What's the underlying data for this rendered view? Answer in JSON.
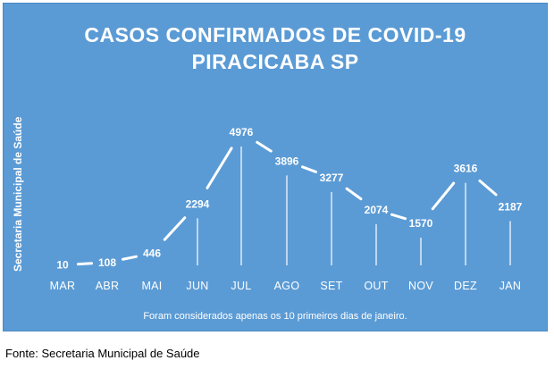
{
  "chart_data": {
    "type": "line",
    "title": "CASOS CONFIRMADOS DE COVID-19",
    "subtitle": "PIRACICABA SP",
    "ylabel": "Secretaria Municipal de Saúde",
    "xlabel": "",
    "categories": [
      "MAR",
      "ABR",
      "MAI",
      "JUN",
      "JUL",
      "AGO",
      "SET",
      "OUT",
      "NOV",
      "DEZ",
      "JAN"
    ],
    "values": [
      10,
      108,
      446,
      2294,
      4976,
      3896,
      3277,
      2074,
      1570,
      3616,
      2187
    ],
    "ylim": [
      0,
      5000
    ],
    "grid": false,
    "annotation": "Foram considerados apenas os 10 primeiros dias de janeiro.",
    "colors": {
      "background": "#5b9bd5",
      "line": "#ffffff",
      "text": "#ffffff"
    }
  },
  "footer": {
    "source": "Fonte: Secretaria Municipal de Saúde"
  }
}
